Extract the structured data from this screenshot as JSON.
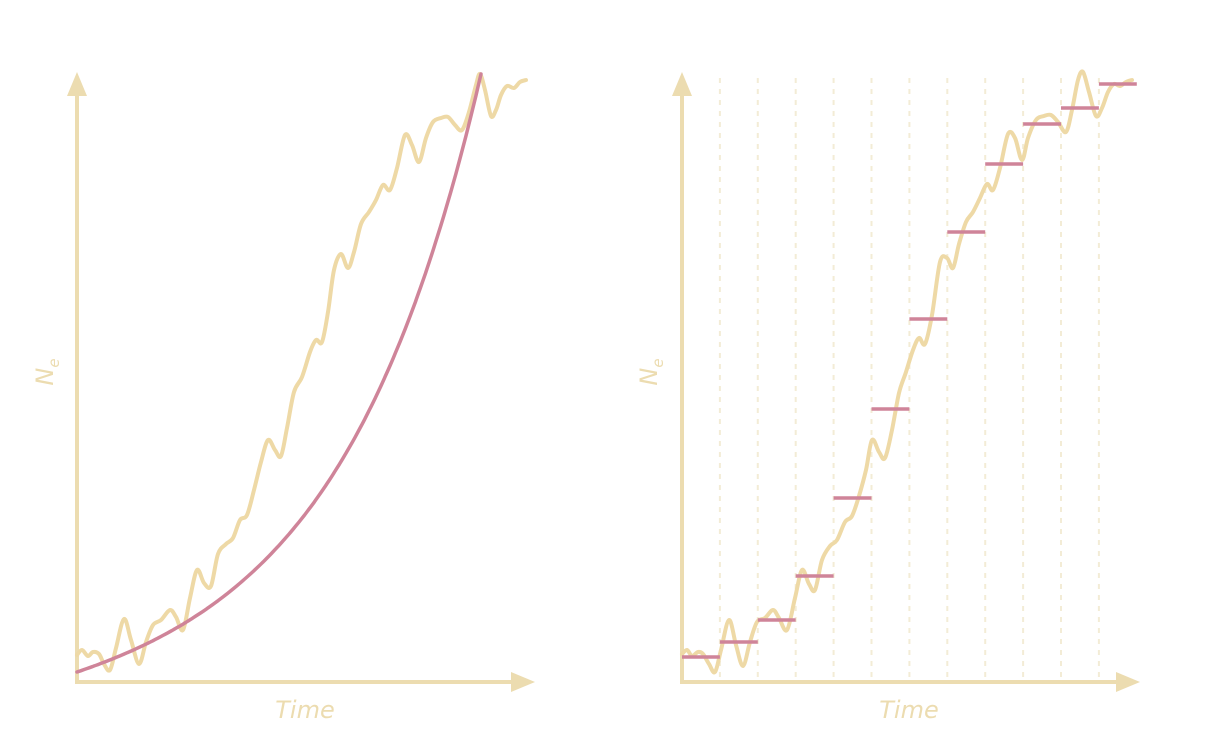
{
  "colors": {
    "axis": "#ecdcb0",
    "noisy_curve": "#eed9a6",
    "model_curve": "#cf8499",
    "epoch_grid": "#f3ecd6"
  },
  "panels": [
    {
      "id": "continuous",
      "xlabel": "Time",
      "ylabel_main": "N",
      "ylabel_sub": "e",
      "model": "smooth-exponential"
    },
    {
      "id": "piecewise",
      "xlabel": "Time",
      "ylabel_main": "N",
      "ylabel_sub": "e",
      "model": "piecewise-constant",
      "intervals": 12
    }
  ]
}
